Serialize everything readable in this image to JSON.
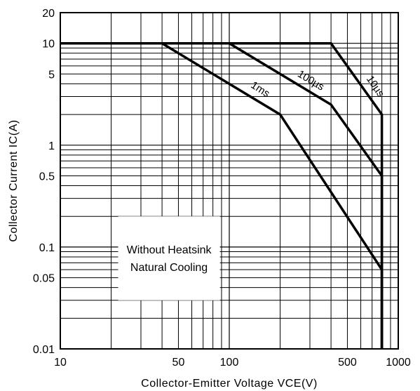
{
  "chart_data": {
    "type": "line",
    "title": "",
    "xlabel": "Collector-Emitter Voltage VCE(V)",
    "ylabel": "Collector Current IC(A)",
    "xscale": "log",
    "yscale": "log",
    "xlim": [
      10,
      1000
    ],
    "ylim": [
      0.01,
      20
    ],
    "grid": true,
    "x_tick_labels": [
      "10",
      "50",
      "100",
      "500",
      "1000"
    ],
    "x_tick_values": [
      10,
      50,
      100,
      500,
      1000
    ],
    "y_tick_labels": [
      "0.01",
      "0.05",
      "0.1",
      "0.5",
      "1",
      "5",
      "10",
      "20"
    ],
    "y_tick_values": [
      0.01,
      0.05,
      0.1,
      0.5,
      1,
      5,
      10,
      20
    ],
    "annotation": [
      "Without Heatsink",
      "Natural Cooling"
    ],
    "series": [
      {
        "name": "1ms",
        "x": [
          10,
          40,
          200,
          800,
          800
        ],
        "y": [
          10,
          10,
          2,
          0.06,
          0.01
        ]
      },
      {
        "name": "100µs",
        "x": [
          10,
          100,
          400,
          800,
          800
        ],
        "y": [
          10,
          10,
          2.5,
          0.5,
          0.01
        ]
      },
      {
        "name": "10µs",
        "x": [
          10,
          400,
          800,
          800
        ],
        "y": [
          10,
          10,
          2,
          0.01
        ]
      }
    ]
  }
}
